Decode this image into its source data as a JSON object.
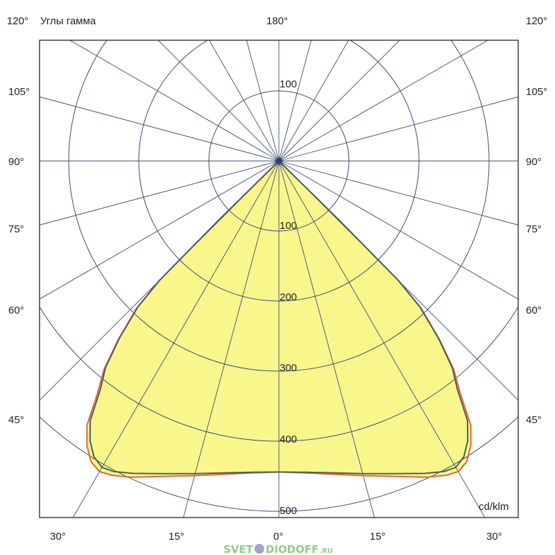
{
  "chart_data": {
    "type": "polar",
    "title": "Углы гамма",
    "unit": "cd/klm",
    "radial_ticks": [
      100,
      200,
      300,
      400,
      500
    ],
    "radial_range": [
      0,
      500
    ],
    "angle_step_deg": 15,
    "grid": true,
    "angle_labels": {
      "top_left": "120°",
      "top_center": "180°",
      "top_right": "120°",
      "left": [
        "105°",
        "90°",
        "75°",
        "60°",
        "45°"
      ],
      "right": [
        "105°",
        "90°",
        "75°",
        "60°",
        "45°"
      ],
      "bottom": [
        "30°",
        "15°",
        "0°",
        "15°",
        "30°"
      ]
    },
    "upper_tick_label": "100",
    "series": [
      {
        "color": "#e8603a",
        "gamma": [
          0,
          5,
          10,
          15,
          20,
          25,
          28,
          30,
          32,
          34,
          36,
          38,
          40,
          42,
          44,
          45,
          45.5,
          46
        ],
        "values": [
          444,
          447,
          454,
          465,
          479,
          498,
          508,
          512,
          506,
          490,
          466,
          420,
          388,
          342,
          292,
          242,
          120,
          0
        ]
      },
      {
        "color": "#4d5f5a",
        "gamma": [
          0,
          5,
          10,
          15,
          20,
          25,
          28,
          30,
          32,
          34,
          36,
          38,
          40,
          42,
          44,
          45,
          45.5,
          46
        ],
        "values": [
          444,
          446,
          452,
          462,
          475,
          492,
          502,
          505,
          498,
          482,
          458,
          414,
          385,
          340,
          290,
          240,
          120,
          0
        ]
      }
    ],
    "fill_color": "#f9f78c",
    "grid_color": "#3b4b72"
  },
  "logo": {
    "text": "SVET",
    "text2": "DIODOFF",
    "suffix": ".RU"
  }
}
